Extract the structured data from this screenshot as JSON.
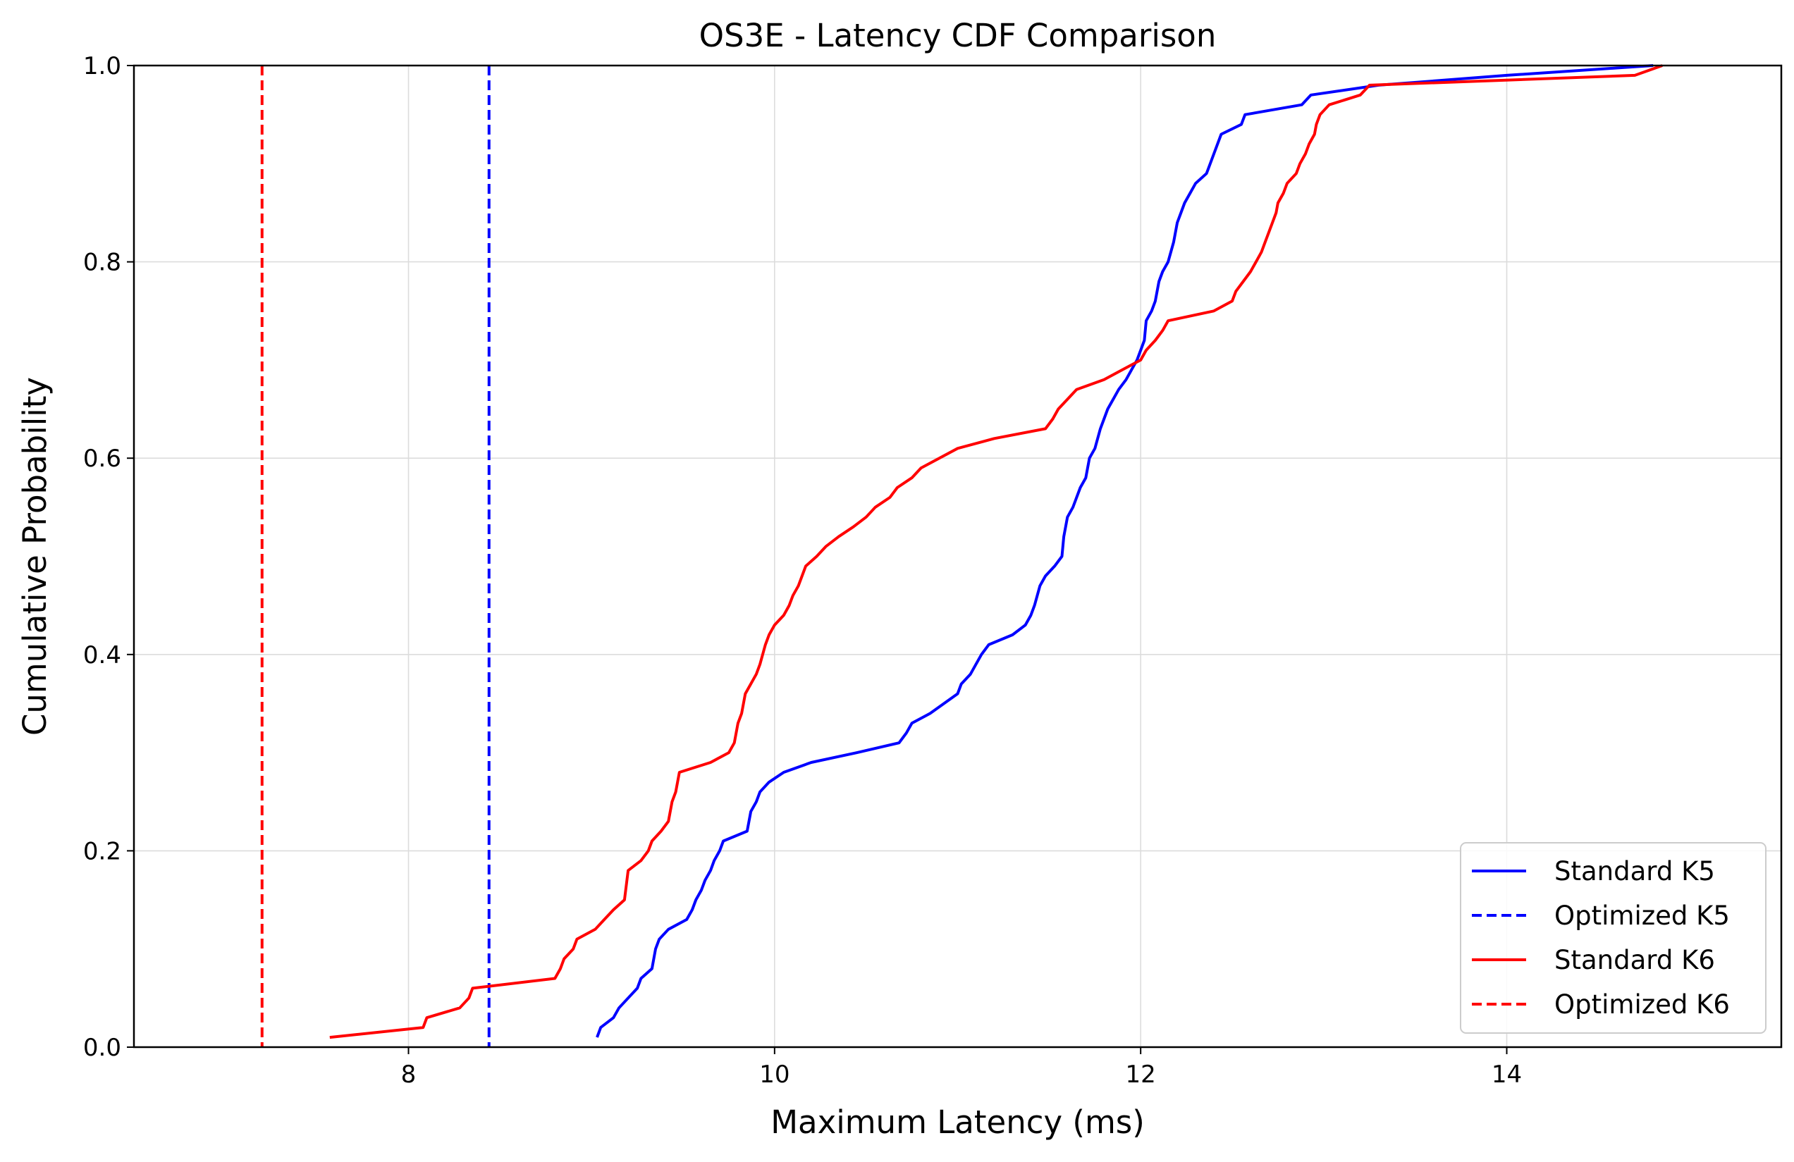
{
  "chart_data": {
    "type": "line",
    "title": "OS3E - Latency CDF Comparison",
    "xlabel": "Maximum Latency (ms)",
    "ylabel": "Cumulative Probability",
    "xlim": [
      6.5,
      15.5
    ],
    "ylim": [
      0.0,
      1.0
    ],
    "xticks": [
      8,
      10,
      12,
      14
    ],
    "xtick_labels": [
      "8",
      "10",
      "12",
      "14"
    ],
    "yticks": [
      0.0,
      0.2,
      0.4,
      0.6,
      0.8,
      1.0
    ],
    "ytick_labels": [
      "0.0",
      "0.2",
      "0.4",
      "0.6",
      "0.8",
      "1.0"
    ],
    "grid": true,
    "legend_position": "lower-right",
    "series": [
      {
        "name": "Standard K5",
        "style": "solid",
        "color": "#0000ff",
        "points": [
          [
            9.03,
            0.01
          ],
          [
            9.05,
            0.02
          ],
          [
            9.12,
            0.03
          ],
          [
            9.15,
            0.04
          ],
          [
            9.2,
            0.05
          ],
          [
            9.25,
            0.06
          ],
          [
            9.27,
            0.07
          ],
          [
            9.33,
            0.08
          ],
          [
            9.35,
            0.1
          ],
          [
            9.37,
            0.11
          ],
          [
            9.42,
            0.12
          ],
          [
            9.52,
            0.13
          ],
          [
            9.55,
            0.14
          ],
          [
            9.57,
            0.15
          ],
          [
            9.6,
            0.16
          ],
          [
            9.62,
            0.17
          ],
          [
            9.65,
            0.18
          ],
          [
            9.67,
            0.19
          ],
          [
            9.7,
            0.2
          ],
          [
            9.72,
            0.21
          ],
          [
            9.85,
            0.22
          ],
          [
            9.87,
            0.24
          ],
          [
            9.9,
            0.25
          ],
          [
            9.92,
            0.26
          ],
          [
            9.97,
            0.27
          ],
          [
            10.05,
            0.28
          ],
          [
            10.2,
            0.29
          ],
          [
            10.45,
            0.3
          ],
          [
            10.68,
            0.31
          ],
          [
            10.72,
            0.32
          ],
          [
            10.75,
            0.33
          ],
          [
            10.85,
            0.34
          ],
          [
            11.0,
            0.36
          ],
          [
            11.02,
            0.37
          ],
          [
            11.07,
            0.38
          ],
          [
            11.1,
            0.39
          ],
          [
            11.13,
            0.4
          ],
          [
            11.17,
            0.41
          ],
          [
            11.3,
            0.42
          ],
          [
            11.37,
            0.43
          ],
          [
            11.4,
            0.44
          ],
          [
            11.42,
            0.45
          ],
          [
            11.45,
            0.47
          ],
          [
            11.48,
            0.48
          ],
          [
            11.53,
            0.49
          ],
          [
            11.57,
            0.5
          ],
          [
            11.58,
            0.52
          ],
          [
            11.6,
            0.54
          ],
          [
            11.63,
            0.55
          ],
          [
            11.67,
            0.57
          ],
          [
            11.7,
            0.58
          ],
          [
            11.72,
            0.6
          ],
          [
            11.75,
            0.61
          ],
          [
            11.78,
            0.63
          ],
          [
            11.8,
            0.64
          ],
          [
            11.82,
            0.65
          ],
          [
            11.85,
            0.66
          ],
          [
            11.88,
            0.67
          ],
          [
            11.92,
            0.68
          ],
          [
            11.95,
            0.69
          ],
          [
            11.98,
            0.7
          ],
          [
            12.0,
            0.71
          ],
          [
            12.02,
            0.72
          ],
          [
            12.03,
            0.74
          ],
          [
            12.06,
            0.75
          ],
          [
            12.08,
            0.76
          ],
          [
            12.1,
            0.78
          ],
          [
            12.12,
            0.79
          ],
          [
            12.15,
            0.8
          ],
          [
            12.18,
            0.82
          ],
          [
            12.2,
            0.84
          ],
          [
            12.22,
            0.85
          ],
          [
            12.24,
            0.86
          ],
          [
            12.27,
            0.87
          ],
          [
            12.3,
            0.88
          ],
          [
            12.36,
            0.89
          ],
          [
            12.38,
            0.9
          ],
          [
            12.42,
            0.92
          ],
          [
            12.44,
            0.93
          ],
          [
            12.55,
            0.94
          ],
          [
            12.57,
            0.95
          ],
          [
            12.88,
            0.96
          ],
          [
            12.93,
            0.97
          ],
          [
            13.3,
            0.98
          ],
          [
            14.0,
            0.99
          ],
          [
            14.8,
            1.0
          ]
        ]
      },
      {
        "name": "Optimized K5",
        "style": "dashed",
        "color": "#0000ff",
        "x": 8.44
      },
      {
        "name": "Standard K6",
        "style": "solid",
        "color": "#ff0000",
        "points": [
          [
            7.57,
            0.01
          ],
          [
            8.08,
            0.02
          ],
          [
            8.1,
            0.03
          ],
          [
            8.28,
            0.04
          ],
          [
            8.33,
            0.05
          ],
          [
            8.35,
            0.06
          ],
          [
            8.8,
            0.07
          ],
          [
            8.83,
            0.08
          ],
          [
            8.85,
            0.09
          ],
          [
            8.9,
            0.1
          ],
          [
            8.92,
            0.11
          ],
          [
            9.02,
            0.12
          ],
          [
            9.07,
            0.13
          ],
          [
            9.12,
            0.14
          ],
          [
            9.18,
            0.15
          ],
          [
            9.2,
            0.18
          ],
          [
            9.27,
            0.19
          ],
          [
            9.31,
            0.2
          ],
          [
            9.33,
            0.21
          ],
          [
            9.38,
            0.22
          ],
          [
            9.42,
            0.23
          ],
          [
            9.44,
            0.25
          ],
          [
            9.46,
            0.26
          ],
          [
            9.48,
            0.28
          ],
          [
            9.65,
            0.29
          ],
          [
            9.75,
            0.3
          ],
          [
            9.78,
            0.31
          ],
          [
            9.8,
            0.33
          ],
          [
            9.82,
            0.34
          ],
          [
            9.84,
            0.36
          ],
          [
            9.87,
            0.37
          ],
          [
            9.9,
            0.38
          ],
          [
            9.92,
            0.39
          ],
          [
            9.95,
            0.41
          ],
          [
            9.97,
            0.42
          ],
          [
            10.0,
            0.43
          ],
          [
            10.05,
            0.44
          ],
          [
            10.08,
            0.45
          ],
          [
            10.1,
            0.46
          ],
          [
            10.13,
            0.47
          ],
          [
            10.17,
            0.49
          ],
          [
            10.23,
            0.5
          ],
          [
            10.28,
            0.51
          ],
          [
            10.35,
            0.52
          ],
          [
            10.43,
            0.53
          ],
          [
            10.5,
            0.54
          ],
          [
            10.55,
            0.55
          ],
          [
            10.63,
            0.56
          ],
          [
            10.67,
            0.57
          ],
          [
            10.75,
            0.58
          ],
          [
            10.8,
            0.59
          ],
          [
            10.9,
            0.6
          ],
          [
            11.0,
            0.61
          ],
          [
            11.2,
            0.62
          ],
          [
            11.48,
            0.63
          ],
          [
            11.52,
            0.64
          ],
          [
            11.55,
            0.65
          ],
          [
            11.6,
            0.66
          ],
          [
            11.65,
            0.67
          ],
          [
            11.8,
            0.68
          ],
          [
            11.9,
            0.69
          ],
          [
            12.0,
            0.7
          ],
          [
            12.03,
            0.71
          ],
          [
            12.08,
            0.72
          ],
          [
            12.12,
            0.73
          ],
          [
            12.15,
            0.74
          ],
          [
            12.4,
            0.75
          ],
          [
            12.5,
            0.76
          ],
          [
            12.52,
            0.77
          ],
          [
            12.56,
            0.78
          ],
          [
            12.6,
            0.79
          ],
          [
            12.63,
            0.8
          ],
          [
            12.66,
            0.81
          ],
          [
            12.68,
            0.82
          ],
          [
            12.7,
            0.83
          ],
          [
            12.72,
            0.84
          ],
          [
            12.74,
            0.85
          ],
          [
            12.75,
            0.86
          ],
          [
            12.78,
            0.87
          ],
          [
            12.8,
            0.88
          ],
          [
            12.85,
            0.89
          ],
          [
            12.87,
            0.9
          ],
          [
            12.9,
            0.91
          ],
          [
            12.92,
            0.92
          ],
          [
            12.95,
            0.93
          ],
          [
            12.96,
            0.94
          ],
          [
            12.98,
            0.95
          ],
          [
            13.03,
            0.96
          ],
          [
            13.2,
            0.97
          ],
          [
            13.25,
            0.98
          ],
          [
            14.7,
            0.99
          ],
          [
            14.85,
            1.0
          ]
        ]
      },
      {
        "name": "Optimized K6",
        "style": "dashed",
        "color": "#ff0000",
        "x": 7.2
      }
    ]
  }
}
